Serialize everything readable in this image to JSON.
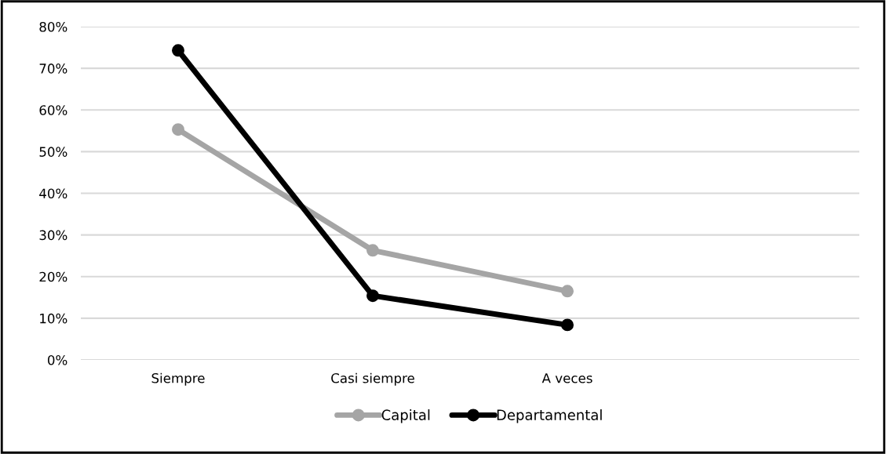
{
  "chart_data": {
    "type": "line",
    "categories": [
      "Siempre",
      "Casi siempre",
      "A veces",
      null
    ],
    "series": [
      {
        "name": "Capital",
        "color": "#a5a5a5",
        "values": [
          55.3,
          26.3,
          16.5,
          null
        ]
      },
      {
        "name": "Departamental",
        "color": "#000000",
        "values": [
          74.3,
          15.4,
          8.4,
          null
        ]
      }
    ],
    "ylim": [
      0,
      80
    ],
    "yticks": [
      {
        "value": 0,
        "label": "0%"
      },
      {
        "value": 10,
        "label": "10%"
      },
      {
        "value": 20,
        "label": "20%"
      },
      {
        "value": 30,
        "label": "30%"
      },
      {
        "value": 40,
        "label": "40%"
      },
      {
        "value": 50,
        "label": "50%"
      },
      {
        "value": 60,
        "label": "60%"
      },
      {
        "value": 70,
        "label": "70%"
      },
      {
        "value": 80,
        "label": "80%"
      }
    ],
    "grid": "y",
    "legend": "bottom",
    "marker": "circle",
    "line_style": "solid"
  }
}
